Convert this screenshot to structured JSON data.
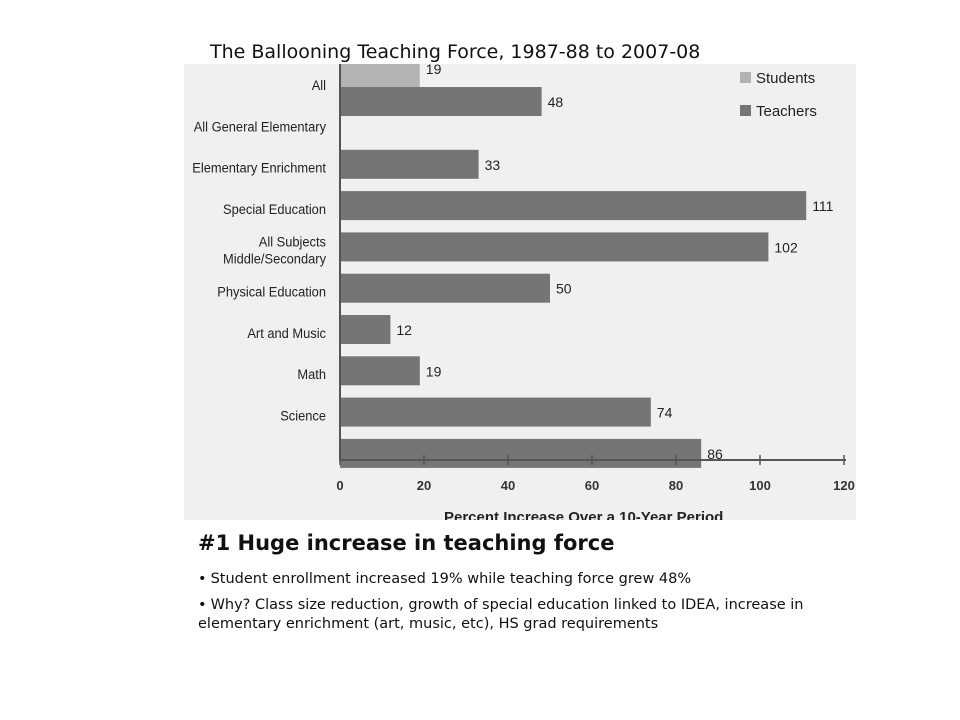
{
  "slide": {
    "title": "The Ballooning Teaching Force, 1987-88 to 2007-08",
    "heading": "#1 Huge increase in teaching force",
    "bullets": [
      "Student enrollment increased 19% while teaching force grew 48%",
      "Why? Class size reduction, growth of special education linked to IDEA, increase in elementary enrichment (art, music, etc), HS grad requirements"
    ]
  },
  "chart_data": {
    "type": "bar",
    "orientation": "horizontal",
    "categories": [
      "All",
      "All General Elementary",
      "Elementary Enrichment",
      "Special Education",
      "All Subjects Middle/Secondary",
      "Physical Education",
      "Art and Music",
      "Math",
      "Science"
    ],
    "category_label_lines": [
      [
        "All"
      ],
      [
        "All General Elementary"
      ],
      [
        "Elementary Enrichment"
      ],
      [
        "Special Education"
      ],
      [
        "All Subjects",
        "Middle/Secondary"
      ],
      [
        "Physical Education"
      ],
      [
        "Art and Music"
      ],
      [
        "Math"
      ],
      [
        "Science"
      ]
    ],
    "series": [
      {
        "name": "Students",
        "color": "#b3b3b3",
        "values": [
          19,
          null,
          null,
          null,
          null,
          null,
          null,
          null,
          null
        ]
      },
      {
        "name": "Teachers",
        "color": "#757575",
        "values": [
          48,
          33,
          111,
          102,
          50,
          12,
          19,
          74,
          86
        ]
      }
    ],
    "xlabel": "Percent Increase Over a 10-Year Period",
    "xlim": [
      0,
      120
    ],
    "xticks": [
      0,
      20,
      40,
      60,
      80,
      100,
      120
    ],
    "legend_position": "top-right",
    "grid": false
  }
}
